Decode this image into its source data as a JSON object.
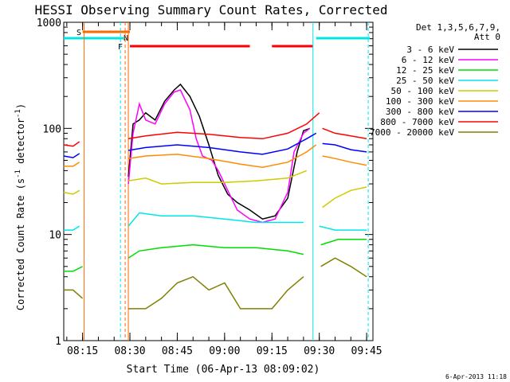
{
  "chart_data": {
    "type": "line",
    "title": "HESSI Observing Summary Count Rates, Corrected",
    "xlabel": "Start Time (06-Apr-13 08:09:02)",
    "ylabel_main": "Corrected Count Rate (s",
    "ylabel_sup1": "-1",
    "ylabel_mid": " detector",
    "ylabel_sup2": "-1",
    "ylabel_end": ")",
    "y_scale": "log",
    "ylim": [
      1,
      1000
    ],
    "xlim": [
      "08:09:02",
      "09:47:00"
    ],
    "x_ticks": [
      "08:15",
      "08:30",
      "08:45",
      "09:00",
      "09:15",
      "09:30",
      "09:45"
    ],
    "y_ticks": [
      "1",
      "10",
      "100",
      "1000"
    ],
    "legend_header_1": "Det 1,3,5,6,7,9,",
    "legend_header_2": "Att 0",
    "legend_position": "right",
    "timestamp": "6-Apr-2013 11:18",
    "flag_labels": {
      "s": "S",
      "n": "N",
      "f": "F"
    },
    "series": [
      {
        "name": "3 - 6 keV",
        "color": "#000000",
        "points": [
          [
            "08:09",
            null
          ],
          [
            "08:29:30",
            35
          ],
          [
            "08:31",
            110
          ],
          [
            "08:33",
            120
          ],
          [
            "08:35",
            140
          ],
          [
            "08:38",
            120
          ],
          [
            "08:41",
            180
          ],
          [
            "08:44",
            230
          ],
          [
            "08:46",
            260
          ],
          [
            "08:49",
            200
          ],
          [
            "08:52",
            130
          ],
          [
            "08:55",
            70
          ],
          [
            "08:58",
            36
          ],
          [
            "09:01",
            24
          ],
          [
            "09:04",
            20
          ],
          [
            "09:08",
            17
          ],
          [
            "09:12",
            14
          ],
          [
            "09:16",
            15
          ],
          [
            "09:20",
            22
          ],
          [
            "09:23",
            60
          ],
          [
            "09:25",
            95
          ],
          [
            "09:27",
            100
          ],
          [
            "09:28",
            null
          ]
        ]
      },
      {
        "name": "6 - 12 keV",
        "color": "#ff00ff",
        "points": [
          [
            "08:09",
            null
          ],
          [
            "08:29:30",
            30
          ],
          [
            "08:31",
            90
          ],
          [
            "08:33",
            170
          ],
          [
            "08:35",
            120
          ],
          [
            "08:38",
            110
          ],
          [
            "08:41",
            170
          ],
          [
            "08:44",
            220
          ],
          [
            "08:46",
            230
          ],
          [
            "08:49",
            150
          ],
          [
            "08:51",
            80
          ],
          [
            "08:53",
            55
          ],
          [
            "08:56",
            50
          ],
          [
            "08:58",
            40
          ],
          [
            "09:01",
            26
          ],
          [
            "09:04",
            17
          ],
          [
            "09:08",
            14
          ],
          [
            "09:12",
            13
          ],
          [
            "09:16",
            14
          ],
          [
            "09:20",
            25
          ],
          [
            "09:22",
            60
          ],
          [
            "09:25",
            90
          ],
          [
            "09:27",
            100
          ],
          [
            "09:28",
            null
          ]
        ]
      },
      {
        "name": "12 - 25 keV",
        "color": "#00dd00",
        "points": [
          [
            "08:09",
            4.5
          ],
          [
            "08:12",
            4.5
          ],
          [
            "08:15",
            5
          ],
          [
            "08:15:30",
            null
          ],
          [
            "08:29:30",
            6
          ],
          [
            "08:33",
            7
          ],
          [
            "08:40",
            7.5
          ],
          [
            "08:50",
            8
          ],
          [
            "09:00",
            7.5
          ],
          [
            "09:10",
            7.5
          ],
          [
            "09:20",
            7
          ],
          [
            "09:25",
            6.5
          ],
          [
            "09:28",
            null
          ],
          [
            "09:30:30",
            8
          ],
          [
            "09:36",
            9
          ],
          [
            "09:40",
            9
          ],
          [
            "09:45",
            9
          ]
        ]
      },
      {
        "name": "25 - 50 keV",
        "color": "#00e5e5",
        "points": [
          [
            "08:09",
            11
          ],
          [
            "08:12",
            11
          ],
          [
            "08:14",
            12
          ],
          [
            "08:15:30",
            null
          ],
          [
            "08:29:30",
            12
          ],
          [
            "08:33",
            16
          ],
          [
            "08:40",
            15
          ],
          [
            "08:50",
            15
          ],
          [
            "09:00",
            14
          ],
          [
            "09:10",
            13
          ],
          [
            "09:20",
            13
          ],
          [
            "09:25",
            13
          ],
          [
            "09:28",
            null
          ],
          [
            "09:30",
            12
          ],
          [
            "09:35",
            11
          ],
          [
            "09:40",
            11
          ],
          [
            "09:45",
            11
          ]
        ]
      },
      {
        "name": "50 - 100 keV",
        "color": "#cccc00",
        "points": [
          [
            "08:09",
            25
          ],
          [
            "08:12",
            24
          ],
          [
            "08:14",
            26
          ],
          [
            "08:15:30",
            null
          ],
          [
            "08:29:30",
            32
          ],
          [
            "08:35",
            34
          ],
          [
            "08:40",
            30
          ],
          [
            "08:50",
            31
          ],
          [
            "09:00",
            31
          ],
          [
            "09:10",
            32
          ],
          [
            "09:20",
            34
          ],
          [
            "09:26",
            40
          ],
          [
            "09:29",
            null
          ],
          [
            "09:31",
            18
          ],
          [
            "09:35",
            22
          ],
          [
            "09:40",
            26
          ],
          [
            "09:45",
            28
          ]
        ]
      },
      {
        "name": "100 - 300 keV",
        "color": "#ff8c00",
        "points": [
          [
            "08:09",
            44
          ],
          [
            "08:12",
            44
          ],
          [
            "08:14",
            48
          ],
          [
            "08:15:30",
            null
          ],
          [
            "08:29:30",
            52
          ],
          [
            "08:35",
            55
          ],
          [
            "08:45",
            57
          ],
          [
            "08:55",
            52
          ],
          [
            "09:05",
            46
          ],
          [
            "09:12",
            43
          ],
          [
            "09:20",
            48
          ],
          [
            "09:26",
            60
          ],
          [
            "09:29",
            70
          ],
          [
            "09:30:30",
            null
          ],
          [
            "09:31",
            55
          ],
          [
            "09:35",
            52
          ],
          [
            "09:40",
            48
          ],
          [
            "09:45",
            45
          ]
        ]
      },
      {
        "name": "300 - 800 keV",
        "color": "#0000ff",
        "points": [
          [
            "08:09",
            55
          ],
          [
            "08:12",
            53
          ],
          [
            "08:14",
            58
          ],
          [
            "08:15:30",
            null
          ],
          [
            "08:29:30",
            62
          ],
          [
            "08:35",
            66
          ],
          [
            "08:45",
            70
          ],
          [
            "08:55",
            66
          ],
          [
            "09:05",
            60
          ],
          [
            "09:12",
            57
          ],
          [
            "09:20",
            64
          ],
          [
            "09:26",
            80
          ],
          [
            "09:29",
            90
          ],
          [
            "09:30:30",
            null
          ],
          [
            "09:31",
            72
          ],
          [
            "09:35",
            70
          ],
          [
            "09:40",
            63
          ],
          [
            "09:45",
            60
          ]
        ]
      },
      {
        "name": "800 - 7000 keV",
        "color": "#ff0000",
        "points": [
          [
            "08:09",
            70
          ],
          [
            "08:12",
            68
          ],
          [
            "08:14",
            75
          ],
          [
            "08:15:30",
            null
          ],
          [
            "08:29:30",
            80
          ],
          [
            "08:35",
            85
          ],
          [
            "08:45",
            92
          ],
          [
            "08:55",
            88
          ],
          [
            "09:05",
            82
          ],
          [
            "09:12",
            80
          ],
          [
            "09:20",
            90
          ],
          [
            "09:26",
            110
          ],
          [
            "09:30",
            140
          ],
          [
            "09:30:30",
            null
          ],
          [
            "09:31",
            100
          ],
          [
            "09:35",
            90
          ],
          [
            "09:40",
            85
          ],
          [
            "09:45",
            80
          ]
        ]
      },
      {
        "name": "7000 - 20000 keV",
        "color": "#808000",
        "points": [
          [
            "08:09",
            3
          ],
          [
            "08:12",
            3
          ],
          [
            "08:15",
            2.5
          ],
          [
            "08:15:30",
            null
          ],
          [
            "08:29:30",
            2
          ],
          [
            "08:35",
            2
          ],
          [
            "08:40",
            2.5
          ],
          [
            "08:45",
            3.5
          ],
          [
            "08:50",
            4
          ],
          [
            "08:55",
            3
          ],
          [
            "09:00",
            3.5
          ],
          [
            "09:05",
            2
          ],
          [
            "09:10",
            2
          ],
          [
            "09:15",
            2
          ],
          [
            "09:20",
            3
          ],
          [
            "09:25",
            4
          ],
          [
            "09:28",
            null
          ],
          [
            "09:30:30",
            5
          ],
          [
            "09:35",
            6
          ],
          [
            "09:40",
            5
          ],
          [
            "09:45",
            4
          ]
        ]
      }
    ],
    "bars": [
      {
        "label": "S",
        "color": "#ff6a00",
        "start": "08:15",
        "end": "08:30"
      },
      {
        "label": "N",
        "color": "#00e5e5",
        "start": "08:09",
        "end": "08:28"
      },
      {
        "label": "N",
        "color": "#00e5e5",
        "start": "09:29",
        "end": "09:46"
      },
      {
        "label": "F",
        "color": "#ff0000",
        "start": "08:30",
        "end": "09:08"
      },
      {
        "label": "F",
        "color": "#ff0000",
        "start": "09:15",
        "end": "09:28"
      }
    ],
    "markers": [
      {
        "time": "08:15:30",
        "color": "#ff6a00",
        "style": "solid"
      },
      {
        "time": "08:27",
        "color": "#00e5e5",
        "style": "dashed"
      },
      {
        "time": "08:28:30",
        "color": "#ff6a00",
        "style": "dashed"
      },
      {
        "time": "08:29:30",
        "color": "#ff6a00",
        "style": "solid"
      },
      {
        "time": "09:28",
        "color": "#00e5e5",
        "style": "solid"
      },
      {
        "time": "09:45:30",
        "color": "#00e5e5",
        "style": "dashed"
      }
    ]
  }
}
